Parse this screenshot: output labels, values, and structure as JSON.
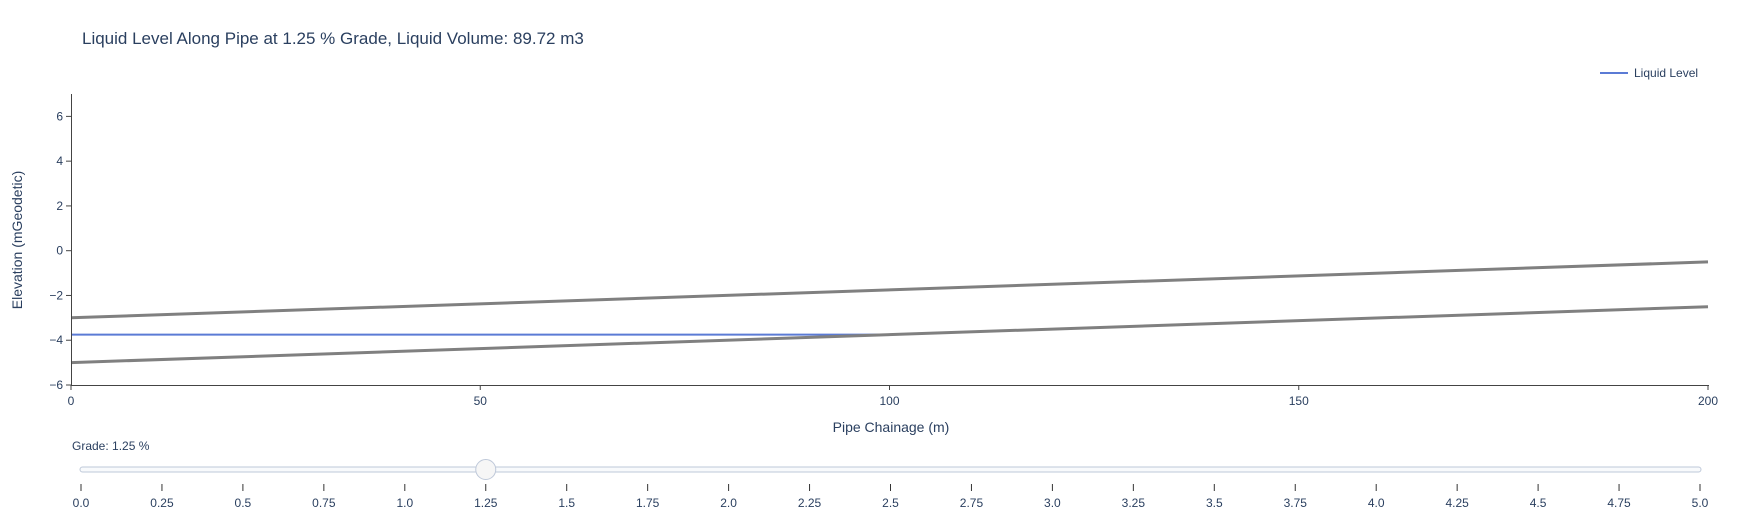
{
  "chart_data": {
    "type": "line",
    "title": "Liquid Level Along Pipe at 1.25 % Grade, Liquid Volume: 89.72 m3",
    "xlabel": "Pipe Chainage (m)",
    "ylabel": "Elevation (mGeodetic)",
    "xlim": [
      0,
      200
    ],
    "ylim": [
      -6,
      7
    ],
    "x_ticks": [
      0,
      50,
      100,
      150,
      200
    ],
    "y_ticks": [
      -6,
      -4,
      -2,
      0,
      2,
      4,
      6
    ],
    "y_tick_labels": [
      "−6",
      "−4",
      "−2",
      "0",
      "2",
      "4",
      "6"
    ],
    "grid": false,
    "legend_position": "top-right",
    "series": [
      {
        "name": "Liquid Level",
        "color": "#5b7bd5",
        "x": [
          0,
          99.6
        ],
        "y": [
          -3.75,
          -3.75
        ]
      },
      {
        "color": "#808080",
        "x": [
          0,
          200
        ],
        "y": [
          -5.0,
          -2.5
        ]
      },
      {
        "color": "#808080",
        "x": [
          0,
          200
        ],
        "y": [
          -3.0,
          -0.5
        ]
      }
    ]
  },
  "slider": {
    "label": "Grade: 1.25 %",
    "min": 0,
    "max": 5,
    "value": 1.25,
    "steps": [
      "0.0",
      "0.25",
      "0.5",
      "0.75",
      "1.0",
      "1.25",
      "1.5",
      "1.75",
      "2.0",
      "2.25",
      "2.5",
      "2.75",
      "3.0",
      "3.25",
      "3.5",
      "3.75",
      "4.0",
      "4.25",
      "4.5",
      "4.75",
      "5.0"
    ]
  }
}
